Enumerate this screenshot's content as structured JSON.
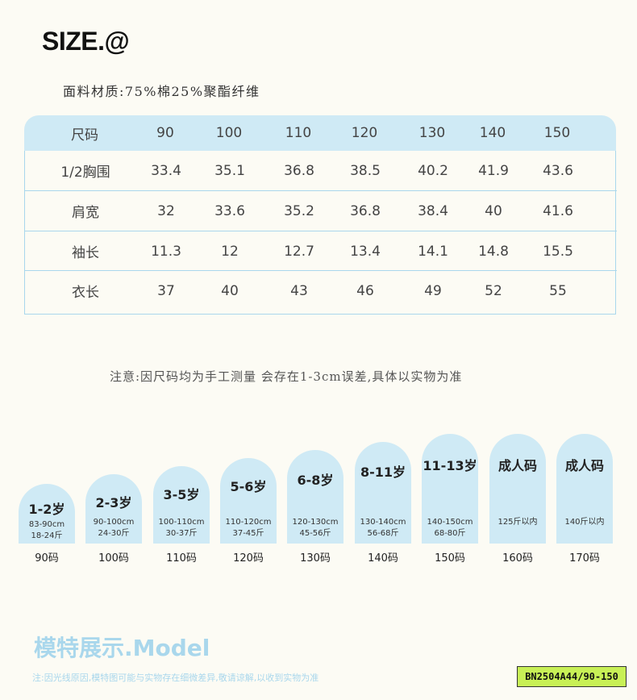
{
  "header": {
    "title": "SIZE.@",
    "material": "面料材质:75%棉25%聚酯纤维"
  },
  "size_table": {
    "columns": [
      "尺码",
      "90",
      "100",
      "110",
      "120",
      "130",
      "140",
      "150"
    ],
    "rows": [
      [
        "1/2胸围",
        "33.4",
        "35.1",
        "36.8",
        "38.5",
        "40.2",
        "41.9",
        "43.6"
      ],
      [
        "肩宽",
        "32",
        "33.6",
        "35.2",
        "36.8",
        "38.4",
        "40",
        "41.6"
      ],
      [
        "袖长",
        "11.3",
        "12",
        "12.7",
        "13.4",
        "14.1",
        "14.8",
        "15.5"
      ],
      [
        "衣长",
        "37",
        "40",
        "43",
        "46",
        "49",
        "52",
        "55"
      ]
    ]
  },
  "note": "注意:因尺码均为手工测量 会存在1-3cm误差,具体以实物为准",
  "size_guide": [
    {
      "age": "1-2岁",
      "height": "83-90cm",
      "weight": "18-24斤",
      "size": "90码"
    },
    {
      "age": "2-3岁",
      "height": "90-100cm",
      "weight": "24-30斤",
      "size": "100码"
    },
    {
      "age": "3-5岁",
      "height": "100-110cm",
      "weight": "30-37斤",
      "size": "110码"
    },
    {
      "age": "5-6岁",
      "height": "110-120cm",
      "weight": "37-45斤",
      "size": "120码"
    },
    {
      "age": "6-8岁",
      "height": "120-130cm",
      "weight": "45-56斤",
      "size": "130码"
    },
    {
      "age": "8-11岁",
      "height": "130-140cm",
      "weight": "56-68斤",
      "size": "140码"
    },
    {
      "age": "11-13岁",
      "height": "140-150cm",
      "weight": "68-80斤",
      "size": "150码"
    },
    {
      "age": "成人码",
      "height": "125斤以内",
      "weight": "",
      "size": "160码"
    },
    {
      "age": "成人码",
      "height": "140斤以内",
      "weight": "",
      "size": "170码"
    }
  ],
  "footer": {
    "model_title": "模特展示.Model",
    "disclaimer": "注:因光线原因,模特图可能与实物存在细微差异,敬请谅解,以收到实物为准",
    "product_code": "BN2504A44/90-150"
  }
}
